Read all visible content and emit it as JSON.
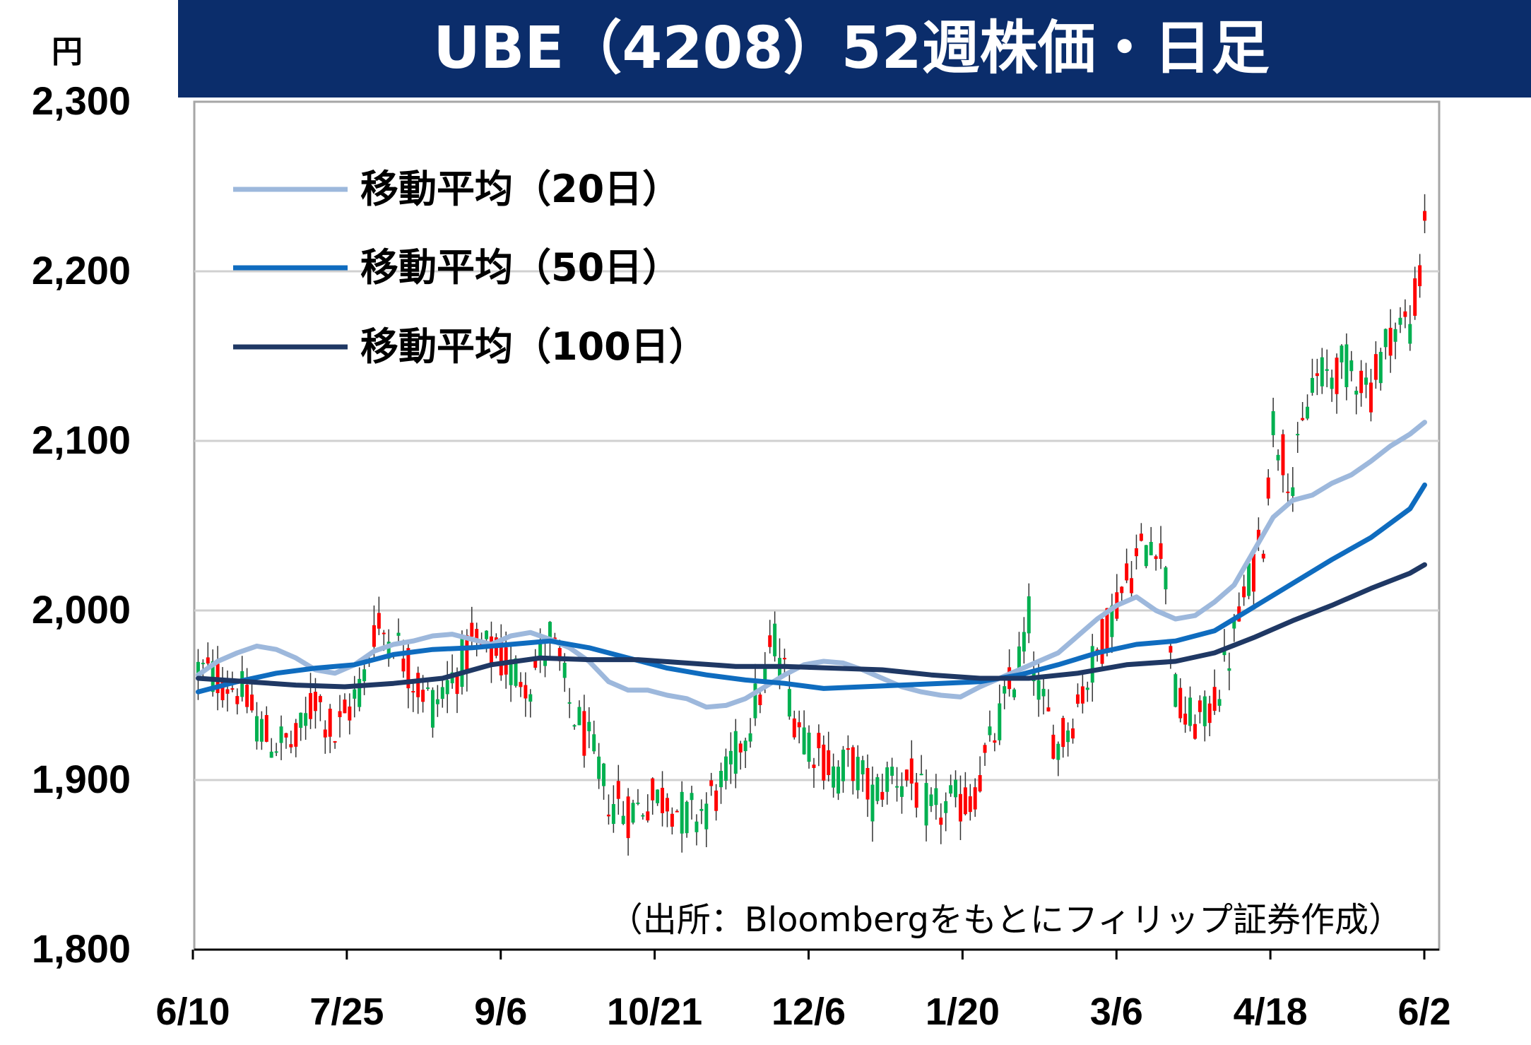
{
  "chart_data": {
    "type": "candlestick",
    "title": "UBE（4208）52週株価・日足",
    "unit_label": "円",
    "source": "（出所：Bloombergをもとにフィリップ証券作成）",
    "ylim": [
      1800,
      2300
    ],
    "yticks": [
      1800,
      1900,
      2000,
      2100,
      2200,
      2300
    ],
    "ytick_labels": [
      "1,800",
      "1,900",
      "2,000",
      "2,100",
      "2,200",
      "2,300"
    ],
    "xtick_labels": [
      "6/10",
      "7/25",
      "9/6",
      "10/21",
      "12/6",
      "1/20",
      "3/6",
      "4/18",
      "6/2"
    ],
    "grid": true,
    "legend_position": "top-left",
    "colors": {
      "title_bg": "#0b2d6b",
      "up": "#ff0000",
      "down": "#00b050",
      "ma20": "#9db8dc",
      "ma50": "#0f6cbf",
      "ma100": "#1f3864",
      "grid": "#d0d0d0",
      "frame": "#a6a6a6"
    },
    "series": [
      {
        "name": "移動平均（20日）",
        "key": "ma20",
        "points": [
          [
            0,
            1962
          ],
          [
            4,
            1970
          ],
          [
            8,
            1975
          ],
          [
            12,
            1979
          ],
          [
            16,
            1977
          ],
          [
            20,
            1972
          ],
          [
            24,
            1965
          ],
          [
            28,
            1963
          ],
          [
            32,
            1968
          ],
          [
            36,
            1976
          ],
          [
            40,
            1980
          ],
          [
            44,
            1982
          ],
          [
            48,
            1985
          ],
          [
            52,
            1986
          ],
          [
            56,
            1983
          ],
          [
            60,
            1980
          ],
          [
            64,
            1985
          ],
          [
            68,
            1987
          ],
          [
            72,
            1983
          ],
          [
            76,
            1978
          ],
          [
            80,
            1970
          ],
          [
            84,
            1958
          ],
          [
            88,
            1953
          ],
          [
            92,
            1953
          ],
          [
            96,
            1950
          ],
          [
            100,
            1948
          ],
          [
            104,
            1943
          ],
          [
            108,
            1944
          ],
          [
            112,
            1948
          ],
          [
            116,
            1955
          ],
          [
            120,
            1962
          ],
          [
            124,
            1968
          ],
          [
            128,
            1970
          ],
          [
            132,
            1969
          ],
          [
            136,
            1965
          ],
          [
            140,
            1960
          ],
          [
            144,
            1955
          ],
          [
            148,
            1952
          ],
          [
            152,
            1950
          ],
          [
            156,
            1949
          ],
          [
            160,
            1955
          ],
          [
            164,
            1960
          ],
          [
            168,
            1965
          ],
          [
            172,
            1970
          ],
          [
            176,
            1975
          ],
          [
            180,
            1985
          ],
          [
            184,
            1995
          ],
          [
            188,
            2003
          ],
          [
            192,
            2008
          ],
          [
            196,
            2000
          ],
          [
            200,
            1995
          ],
          [
            204,
            1997
          ],
          [
            208,
            2005
          ],
          [
            212,
            2015
          ],
          [
            216,
            2035
          ],
          [
            220,
            2055
          ],
          [
            224,
            2065
          ],
          [
            228,
            2068
          ],
          [
            232,
            2075
          ],
          [
            236,
            2080
          ],
          [
            240,
            2088
          ],
          [
            244,
            2097
          ],
          [
            248,
            2104
          ],
          [
            251,
            2111
          ]
        ]
      },
      {
        "name": "移動平均（50日）",
        "key": "ma50",
        "points": [
          [
            0,
            1952
          ],
          [
            8,
            1958
          ],
          [
            16,
            1963
          ],
          [
            24,
            1966
          ],
          [
            32,
            1968
          ],
          [
            40,
            1974
          ],
          [
            48,
            1977
          ],
          [
            56,
            1978
          ],
          [
            64,
            1980
          ],
          [
            72,
            1982
          ],
          [
            80,
            1978
          ],
          [
            88,
            1972
          ],
          [
            96,
            1966
          ],
          [
            104,
            1962
          ],
          [
            112,
            1959
          ],
          [
            120,
            1957
          ],
          [
            128,
            1954
          ],
          [
            136,
            1955
          ],
          [
            144,
            1956
          ],
          [
            152,
            1957
          ],
          [
            160,
            1958
          ],
          [
            168,
            1962
          ],
          [
            176,
            1968
          ],
          [
            184,
            1975
          ],
          [
            192,
            1980
          ],
          [
            200,
            1982
          ],
          [
            208,
            1988
          ],
          [
            216,
            2002
          ],
          [
            224,
            2016
          ],
          [
            232,
            2030
          ],
          [
            240,
            2043
          ],
          [
            248,
            2060
          ],
          [
            251,
            2074
          ]
        ]
      },
      {
        "name": "移動平均（100日）",
        "key": "ma100",
        "points": [
          [
            0,
            1960
          ],
          [
            10,
            1958
          ],
          [
            20,
            1956
          ],
          [
            30,
            1955
          ],
          [
            40,
            1957
          ],
          [
            50,
            1960
          ],
          [
            60,
            1968
          ],
          [
            70,
            1972
          ],
          [
            80,
            1971
          ],
          [
            90,
            1971
          ],
          [
            100,
            1969
          ],
          [
            110,
            1967
          ],
          [
            120,
            1967
          ],
          [
            130,
            1966
          ],
          [
            140,
            1965
          ],
          [
            150,
            1962
          ],
          [
            160,
            1960
          ],
          [
            170,
            1960
          ],
          [
            180,
            1963
          ],
          [
            190,
            1968
          ],
          [
            200,
            1970
          ],
          [
            208,
            1975
          ],
          [
            216,
            1984
          ],
          [
            224,
            1994
          ],
          [
            232,
            2003
          ],
          [
            240,
            2013
          ],
          [
            248,
            2022
          ],
          [
            251,
            2027
          ]
        ]
      }
    ]
  }
}
